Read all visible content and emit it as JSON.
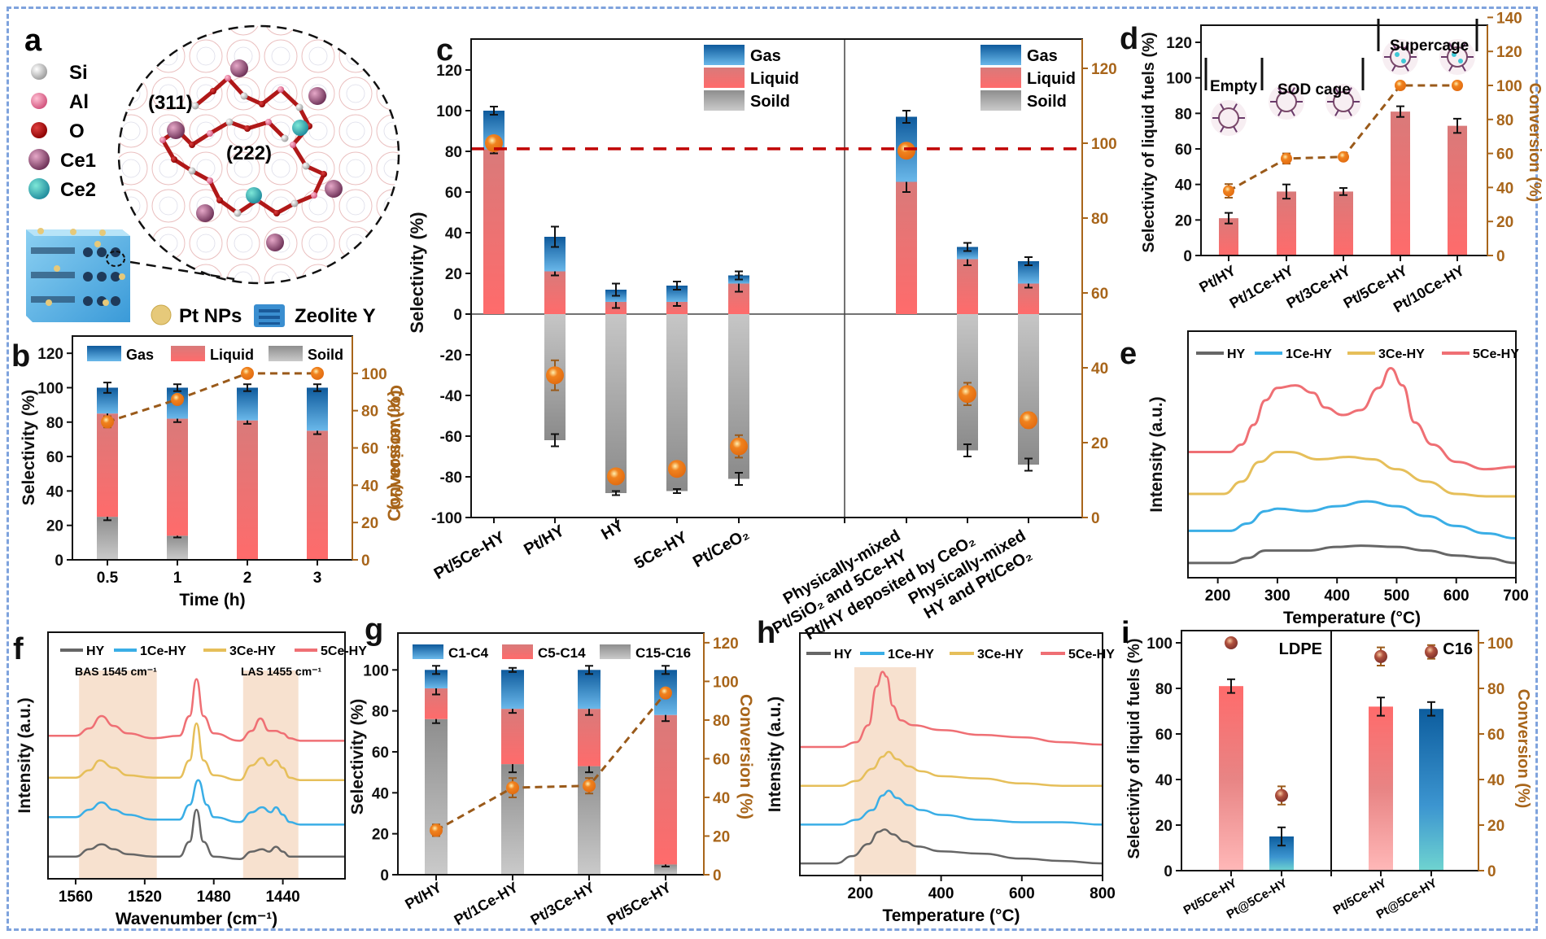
{
  "figure": {
    "border_color": "#7fa3dd",
    "colors": {
      "gas_top": "#0e5a9c",
      "gas_bottom": "#5fb0e6",
      "liquid_top": "#d97a7a",
      "liquid_bottom": "#ff6b6b",
      "solid_top": "#8a8a8a",
      "solid_bottom": "#c8c8c8",
      "conversion": "#f0821e",
      "conversion_axis": "#a8651a",
      "dashed_ref": "#c00000",
      "highlight": "#f6dcc7",
      "HY": "#666666",
      "1Ce-HY": "#3aaee6",
      "3Ce-HY": "#e6bf5a",
      "5Ce-HY": "#ef6f74"
    }
  },
  "panel_a": {
    "label": "a",
    "legend": [
      {
        "name": "Si",
        "color": "#d8d8d8"
      },
      {
        "name": "Al",
        "color": "#e57a9c"
      },
      {
        "name": "O",
        "color": "#a50000"
      },
      {
        "name": "Ce1",
        "color": "#9c4f78"
      },
      {
        "name": "Ce2",
        "color": "#3ec8b6"
      }
    ],
    "sites": [
      "(311)",
      "(222)"
    ],
    "bottom_legend": [
      "Pt NPs",
      "Zeolite Y"
    ]
  },
  "chart_data": [
    {
      "id": "b",
      "label": "b",
      "type": "bar",
      "stacked": true,
      "categories": [
        "0.5",
        "1",
        "2",
        "3"
      ],
      "xlabel": "Time (h)",
      "ylabel": "Selectivity (%)",
      "y2label": "Conversion (%)",
      "ylim": [
        0,
        130
      ],
      "yticks": [
        0,
        20,
        40,
        60,
        80,
        100,
        120
      ],
      "y2lim": [
        0,
        120
      ],
      "y2ticks": [
        0,
        20,
        40,
        60,
        80,
        100
      ],
      "legend": [
        "Gas",
        "Liquid",
        "Soild"
      ],
      "legend_position": "top",
      "series": [
        {
          "name": "Soild",
          "values": [
            25,
            14,
            0,
            0
          ],
          "err": [
            2,
            1,
            0,
            0
          ]
        },
        {
          "name": "Liquid",
          "values": [
            60,
            68,
            81,
            75
          ],
          "err": [
            2,
            2,
            2,
            2
          ]
        },
        {
          "name": "Gas",
          "values": [
            15,
            18,
            19,
            25
          ],
          "err": [
            3,
            2,
            2,
            2
          ]
        }
      ],
      "conversion": {
        "values": [
          74,
          86,
          100,
          100
        ],
        "err": [
          3,
          1,
          0,
          0
        ]
      }
    },
    {
      "id": "c",
      "label": "c",
      "type": "bar",
      "stacked": true,
      "categories": [
        "Pt/5Ce-HY",
        "Pt/HY",
        "HY",
        "5Ce-HY",
        "Pt/CeO₂",
        "Physically-mixed\nPt/SiO₂ and 5Ce-HY",
        "Pt/HY deposited by CeO₂",
        "Physically-mixed\nHY and Pt/CeO₂"
      ],
      "ylabel": "Selectivity (%)",
      "y2label": "Conversion (%)",
      "ylim": [
        -100,
        135
      ],
      "yticks": [
        -100,
        -80,
        -60,
        -40,
        -20,
        0,
        20,
        40,
        60,
        80,
        100,
        120
      ],
      "y2lim": [
        0,
        127
      ],
      "y2ticks": [
        0,
        20,
        40,
        60,
        80,
        100,
        120
      ],
      "legend": [
        "Gas",
        "Liquid",
        "Soild"
      ],
      "legend_position": "top-right",
      "reference_line": {
        "y": 79,
        "style": "dashed"
      },
      "series": [
        {
          "name": "Liquid",
          "values": [
            81,
            21,
            6,
            6,
            15,
            65,
            27,
            15
          ],
          "err": [
            2,
            2,
            3,
            2,
            4,
            5,
            3,
            2
          ]
        },
        {
          "name": "Gas",
          "values": [
            19,
            17,
            6,
            8,
            4,
            32,
            6,
            11
          ],
          "err": [
            2,
            5,
            3,
            2,
            2,
            3,
            2,
            2
          ]
        },
        {
          "name": "Soild",
          "values": [
            0,
            -62,
            -88,
            -87,
            -81,
            0,
            -67,
            -74
          ],
          "err": [
            0,
            3,
            1,
            1,
            3,
            0,
            3,
            3
          ]
        }
      ],
      "conversion": {
        "values": [
          100,
          38,
          11,
          13,
          19,
          98,
          33,
          26
        ],
        "err": [
          1,
          4,
          1,
          1,
          3,
          1,
          3,
          2
        ]
      }
    },
    {
      "id": "d",
      "label": "d",
      "type": "bar",
      "categories": [
        "Pt/HY",
        "Pt/1Ce-HY",
        "Pt/3Ce-HY",
        "Pt/5Ce-HY",
        "Pt/10Ce-HY"
      ],
      "ylabel": "Selectivity of liquid fuels (%)",
      "y2label": "Conversion (%)",
      "ylim": [
        0,
        130
      ],
      "yticks": [
        0,
        20,
        40,
        60,
        80,
        100,
        120
      ],
      "y2lim": [
        0,
        150
      ],
      "y2ticks": [
        0,
        20,
        40,
        60,
        80,
        100,
        120,
        140
      ],
      "annotations": [
        "Empty",
        "SOD cage",
        "Supercage"
      ],
      "series": [
        {
          "name": "Liquid fuels",
          "values": [
            21,
            36,
            36,
            81,
            73
          ],
          "err": [
            3,
            4,
            2,
            3,
            4
          ]
        }
      ],
      "conversion": {
        "values": [
          38,
          57,
          58,
          100,
          100
        ],
        "err": [
          4,
          3,
          1,
          1,
          1
        ]
      }
    },
    {
      "id": "e",
      "label": "e",
      "type": "line",
      "xlabel": "Temperature (°C)",
      "ylabel": "Intensity (a.u.)",
      "xlim": [
        150,
        700
      ],
      "xticks": [
        200,
        300,
        400,
        500,
        600,
        700
      ],
      "legend_position": "top",
      "series": [
        {
          "name": "HY",
          "x": [
            150,
            220,
            250,
            280,
            300,
            350,
            400,
            440,
            500,
            550,
            600,
            650,
            700
          ],
          "y": [
            0.06,
            0.06,
            0.08,
            0.11,
            0.11,
            0.11,
            0.125,
            0.13,
            0.125,
            0.11,
            0.09,
            0.08,
            0.06
          ]
        },
        {
          "name": "1Ce-HY",
          "x": [
            150,
            220,
            250,
            280,
            300,
            350,
            400,
            450,
            500,
            550,
            600,
            650,
            700
          ],
          "y": [
            0.19,
            0.19,
            0.22,
            0.27,
            0.28,
            0.27,
            0.29,
            0.31,
            0.29,
            0.25,
            0.21,
            0.18,
            0.16
          ]
        },
        {
          "name": "3Ce-HY",
          "x": [
            150,
            210,
            240,
            270,
            300,
            320,
            370,
            420,
            460,
            500,
            550,
            600,
            650,
            700
          ],
          "y": [
            0.34,
            0.34,
            0.39,
            0.47,
            0.51,
            0.51,
            0.48,
            0.49,
            0.48,
            0.44,
            0.39,
            0.34,
            0.33,
            0.33
          ]
        },
        {
          "name": "5Ce-HY",
          "x": [
            150,
            220,
            240,
            260,
            280,
            300,
            330,
            360,
            380,
            410,
            440,
            470,
            490,
            510,
            530,
            560,
            600,
            650,
            700
          ],
          "y": [
            0.51,
            0.51,
            0.54,
            0.62,
            0.72,
            0.77,
            0.78,
            0.75,
            0.69,
            0.66,
            0.68,
            0.77,
            0.85,
            0.78,
            0.63,
            0.54,
            0.47,
            0.44,
            0.45
          ]
        }
      ]
    },
    {
      "id": "f",
      "label": "f",
      "type": "line",
      "xlabel": "Wavenumber (cm⁻¹)",
      "ylabel": "Intensity (a.u.)",
      "xlim": [
        1576,
        1404
      ],
      "xticks": [
        1560,
        1520,
        1480,
        1440
      ],
      "x_reversed": true,
      "highlight_bands": [
        [
          1558,
          1513
        ],
        [
          1463,
          1431
        ]
      ],
      "annotations": [
        "BAS 1545 cm⁻¹",
        "LAS 1455 cm⁻¹"
      ],
      "series": [
        {
          "name": "HY",
          "x": [
            1576,
            1560,
            1552,
            1545,
            1538,
            1530,
            1515,
            1500,
            1494,
            1490,
            1486,
            1480,
            1465,
            1458,
            1452,
            1448,
            1444,
            1440,
            1436,
            1430,
            1404
          ],
          "y": [
            0.09,
            0.09,
            0.12,
            0.14,
            0.12,
            0.1,
            0.09,
            0.09,
            0.15,
            0.28,
            0.15,
            0.09,
            0.08,
            0.11,
            0.12,
            0.11,
            0.13,
            0.11,
            0.09,
            0.09,
            0.09
          ]
        },
        {
          "name": "1Ce-HY",
          "x": [
            1576,
            1560,
            1552,
            1545,
            1538,
            1530,
            1515,
            1500,
            1494,
            1489,
            1484,
            1480,
            1465,
            1458,
            1452,
            1447,
            1444,
            1440,
            1436,
            1430,
            1404
          ],
          "y": [
            0.25,
            0.25,
            0.28,
            0.31,
            0.28,
            0.26,
            0.24,
            0.24,
            0.3,
            0.4,
            0.3,
            0.25,
            0.23,
            0.27,
            0.29,
            0.27,
            0.29,
            0.26,
            0.23,
            0.22,
            0.22
          ]
        },
        {
          "name": "3Ce-HY",
          "x": [
            1576,
            1560,
            1552,
            1546,
            1538,
            1530,
            1515,
            1500,
            1494,
            1490,
            1486,
            1480,
            1465,
            1458,
            1452,
            1448,
            1444,
            1440,
            1436,
            1430,
            1404
          ],
          "y": [
            0.41,
            0.41,
            0.44,
            0.48,
            0.45,
            0.42,
            0.41,
            0.41,
            0.48,
            0.63,
            0.48,
            0.42,
            0.4,
            0.46,
            0.49,
            0.46,
            0.48,
            0.45,
            0.41,
            0.4,
            0.4
          ]
        },
        {
          "name": "5Ce-HY",
          "x": [
            1576,
            1560,
            1552,
            1545,
            1538,
            1530,
            1515,
            1500,
            1494,
            1490,
            1486,
            1480,
            1465,
            1458,
            1453,
            1448,
            1444,
            1440,
            1436,
            1430,
            1404
          ],
          "y": [
            0.58,
            0.58,
            0.61,
            0.66,
            0.62,
            0.59,
            0.57,
            0.58,
            0.66,
            0.81,
            0.66,
            0.59,
            0.56,
            0.6,
            0.65,
            0.6,
            0.6,
            0.59,
            0.57,
            0.56,
            0.56
          ]
        }
      ]
    },
    {
      "id": "g",
      "label": "g",
      "type": "bar",
      "stacked": true,
      "categories": [
        "Pt/HY",
        "Pt/1Ce-HY",
        "Pt/3Ce-HY",
        "Pt/5Ce-HY"
      ],
      "ylabel": "Selectivity (%)",
      "y2label": "Conversion (%)",
      "ylim": [
        0,
        118
      ],
      "yticks": [
        0,
        20,
        40,
        60,
        80,
        100
      ],
      "y2lim": [
        0,
        125
      ],
      "y2ticks": [
        0,
        20,
        40,
        60,
        80,
        100,
        120
      ],
      "legend": [
        "C1-C4",
        "C5-C14",
        "C15-C16"
      ],
      "legend_position": "top",
      "series": [
        {
          "name": "C15-C16",
          "values": [
            76,
            54,
            53,
            5
          ],
          "err": [
            2,
            4,
            3,
            1
          ]
        },
        {
          "name": "C5-C14",
          "values": [
            15,
            27,
            28,
            73
          ],
          "err": [
            3,
            2,
            3,
            3
          ]
        },
        {
          "name": "C1-C4",
          "values": [
            9,
            19,
            19,
            22
          ],
          "err": [
            2,
            1,
            2,
            2
          ]
        }
      ],
      "conversion": {
        "values": [
          23,
          45,
          46,
          94
        ],
        "err": [
          3,
          5,
          4,
          1
        ]
      }
    },
    {
      "id": "h",
      "label": "h",
      "type": "line",
      "xlabel": "Temperature (°C)",
      "ylabel": "Intensity (a.u.)",
      "xlim": [
        50,
        800
      ],
      "xticks": [
        200,
        400,
        600,
        800
      ],
      "highlight_bands": [
        [
          185,
          338
        ]
      ],
      "series": [
        {
          "name": "HY",
          "x": [
            50,
            140,
            180,
            220,
            245,
            260,
            280,
            310,
            340,
            400,
            500,
            600,
            700,
            800
          ],
          "y": [
            0.05,
            0.05,
            0.08,
            0.13,
            0.18,
            0.19,
            0.17,
            0.14,
            0.12,
            0.1,
            0.09,
            0.07,
            0.06,
            0.05
          ]
        },
        {
          "name": "1Ce-HY",
          "x": [
            50,
            150,
            190,
            230,
            255,
            270,
            290,
            320,
            350,
            400,
            500,
            600,
            700,
            800
          ],
          "y": [
            0.21,
            0.21,
            0.23,
            0.27,
            0.33,
            0.35,
            0.32,
            0.29,
            0.27,
            0.25,
            0.23,
            0.22,
            0.22,
            0.21
          ]
        },
        {
          "name": "3Ce-HY",
          "x": [
            50,
            150,
            190,
            230,
            255,
            270,
            290,
            320,
            350,
            400,
            500,
            600,
            700,
            800
          ],
          "y": [
            0.37,
            0.37,
            0.39,
            0.44,
            0.49,
            0.51,
            0.48,
            0.45,
            0.43,
            0.41,
            0.4,
            0.38,
            0.37,
            0.37
          ]
        },
        {
          "name": "5Ce-HY",
          "x": [
            50,
            150,
            190,
            220,
            240,
            255,
            265,
            280,
            300,
            330,
            400,
            500,
            600,
            700,
            800
          ],
          "y": [
            0.53,
            0.53,
            0.55,
            0.62,
            0.78,
            0.84,
            0.82,
            0.7,
            0.64,
            0.62,
            0.6,
            0.58,
            0.57,
            0.55,
            0.54
          ]
        }
      ]
    },
    {
      "id": "i",
      "label": "i",
      "type": "bar",
      "groups": [
        "LDPE",
        "C16"
      ],
      "categories": [
        "Pt/5Ce-HY",
        "Pt@5Ce-HY",
        "Pt/5Ce-HY",
        "Pt@5Ce-HY"
      ],
      "ylabel": "Selectivity of liquid fuels (%)",
      "y2label": "Conversion (%)",
      "ylim": [
        0,
        105
      ],
      "yticks": [
        0,
        20,
        40,
        60,
        80,
        100
      ],
      "y2lim": [
        0,
        105
      ],
      "y2ticks": [
        0,
        20,
        40,
        60,
        80,
        100
      ],
      "series": [
        {
          "name": "Liquid fuels",
          "values": [
            81,
            15,
            72,
            71
          ],
          "err": [
            3,
            4,
            4,
            3
          ]
        }
      ],
      "conversion": {
        "values": [
          100,
          33,
          94,
          96
        ],
        "err": [
          0,
          4,
          4,
          3
        ]
      }
    }
  ]
}
